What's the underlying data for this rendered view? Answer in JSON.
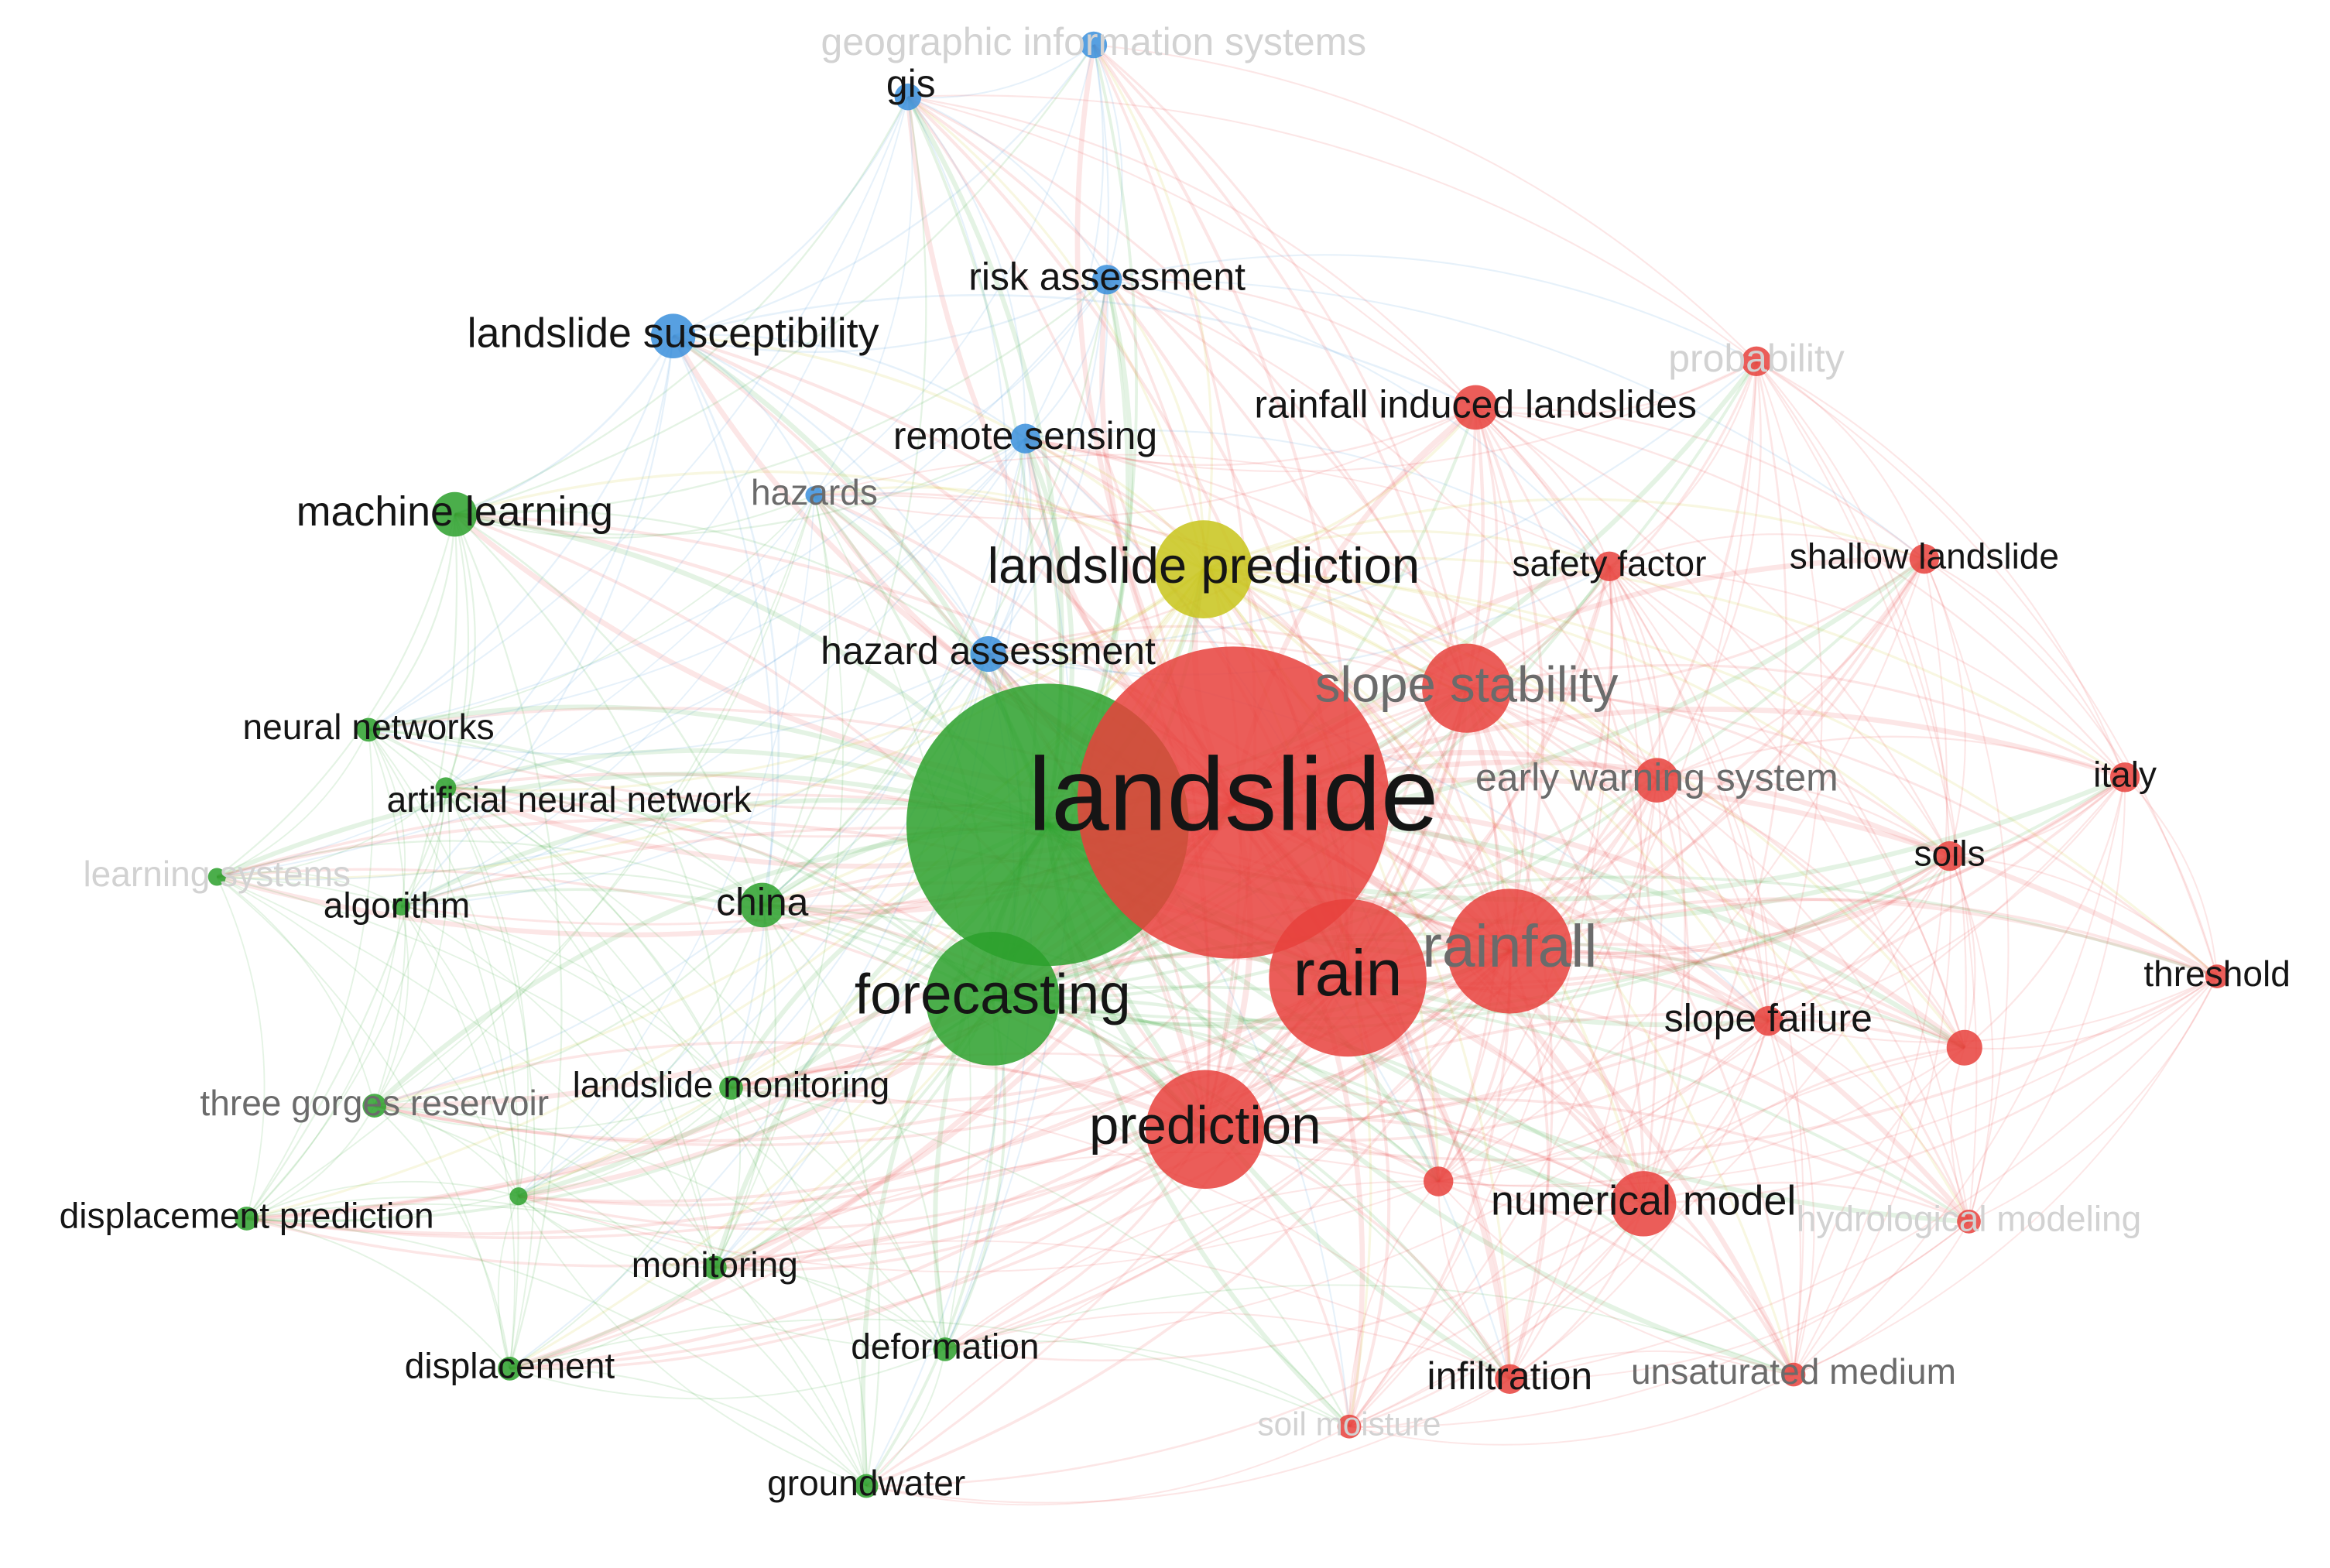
{
  "nodes": [
    {
      "label": "landslide"
    },
    {
      "label": "geographic information systems"
    },
    {
      "label": "gis"
    },
    {
      "label": "risk assessment"
    },
    {
      "label": "landslide susceptibility"
    },
    {
      "label": "probability"
    },
    {
      "label": "rainfall induced landslides"
    },
    {
      "label": "remote sensing"
    },
    {
      "label": "hazards"
    },
    {
      "label": "machine learning"
    },
    {
      "label": "landslide prediction"
    },
    {
      "label": "safety factor"
    },
    {
      "label": "shallow landslide"
    },
    {
      "label": "hazard assessment"
    },
    {
      "label": "slope stability"
    },
    {
      "label": "neural networks"
    },
    {
      "label": "early warning system"
    },
    {
      "label": "italy"
    },
    {
      "label": "artificial neural network"
    },
    {
      "label": "learning systems"
    },
    {
      "label": "algorithm"
    },
    {
      "label": "china"
    },
    {
      "label": "soils"
    },
    {
      "label": "rainfall"
    },
    {
      "label": "forecasting"
    },
    {
      "label": "rain"
    },
    {
      "label": "threshold"
    },
    {
      "label": "slope failure"
    },
    {
      "label": "landslide monitoring"
    },
    {
      "label": "three gorges reservoir"
    },
    {
      "label": "prediction"
    },
    {
      "label": "displacement prediction"
    },
    {
      "label": "numerical model"
    },
    {
      "label": "hydrological modeling"
    },
    {
      "label": "monitoring"
    },
    {
      "label": "deformation"
    },
    {
      "label": "displacement"
    },
    {
      "label": "infiltration"
    },
    {
      "label": "unsaturated medium"
    },
    {
      "label": "soil moisture"
    },
    {
      "label": "groundwater"
    }
  ]
}
